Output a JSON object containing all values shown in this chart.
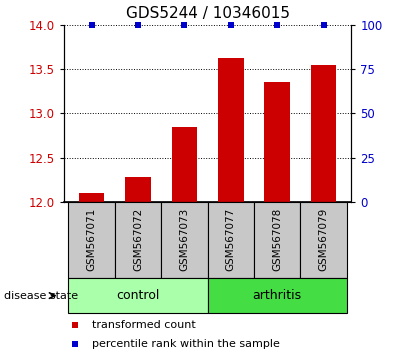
{
  "title": "GDS5244 / 10346015",
  "samples": [
    "GSM567071",
    "GSM567072",
    "GSM567073",
    "GSM567077",
    "GSM567078",
    "GSM567079"
  ],
  "red_values": [
    12.1,
    12.28,
    12.85,
    13.62,
    13.35,
    13.55
  ],
  "blue_values": [
    100,
    100,
    100,
    100,
    100,
    100
  ],
  "ylim_left": [
    12,
    14
  ],
  "ylim_right": [
    0,
    100
  ],
  "yticks_left": [
    12,
    12.5,
    13,
    13.5,
    14
  ],
  "yticks_right": [
    0,
    25,
    50,
    75,
    100
  ],
  "groups": [
    {
      "label": "control",
      "indices": [
        0,
        1,
        2
      ],
      "color": "#AAFFAA"
    },
    {
      "label": "arthritis",
      "indices": [
        3,
        4,
        5
      ],
      "color": "#44DD44"
    }
  ],
  "disease_state_label": "disease state",
  "legend_red_label": "transformed count",
  "legend_blue_label": "percentile rank within the sample",
  "bar_color": "#CC0000",
  "blue_color": "#0000CC",
  "bar_width": 0.55,
  "sample_box_color": "#C8C8C8",
  "title_fontsize": 11,
  "tick_fontsize": 8.5,
  "sample_fontsize": 7.5,
  "group_fontsize": 9,
  "legend_fontsize": 8,
  "disease_fontsize": 8
}
